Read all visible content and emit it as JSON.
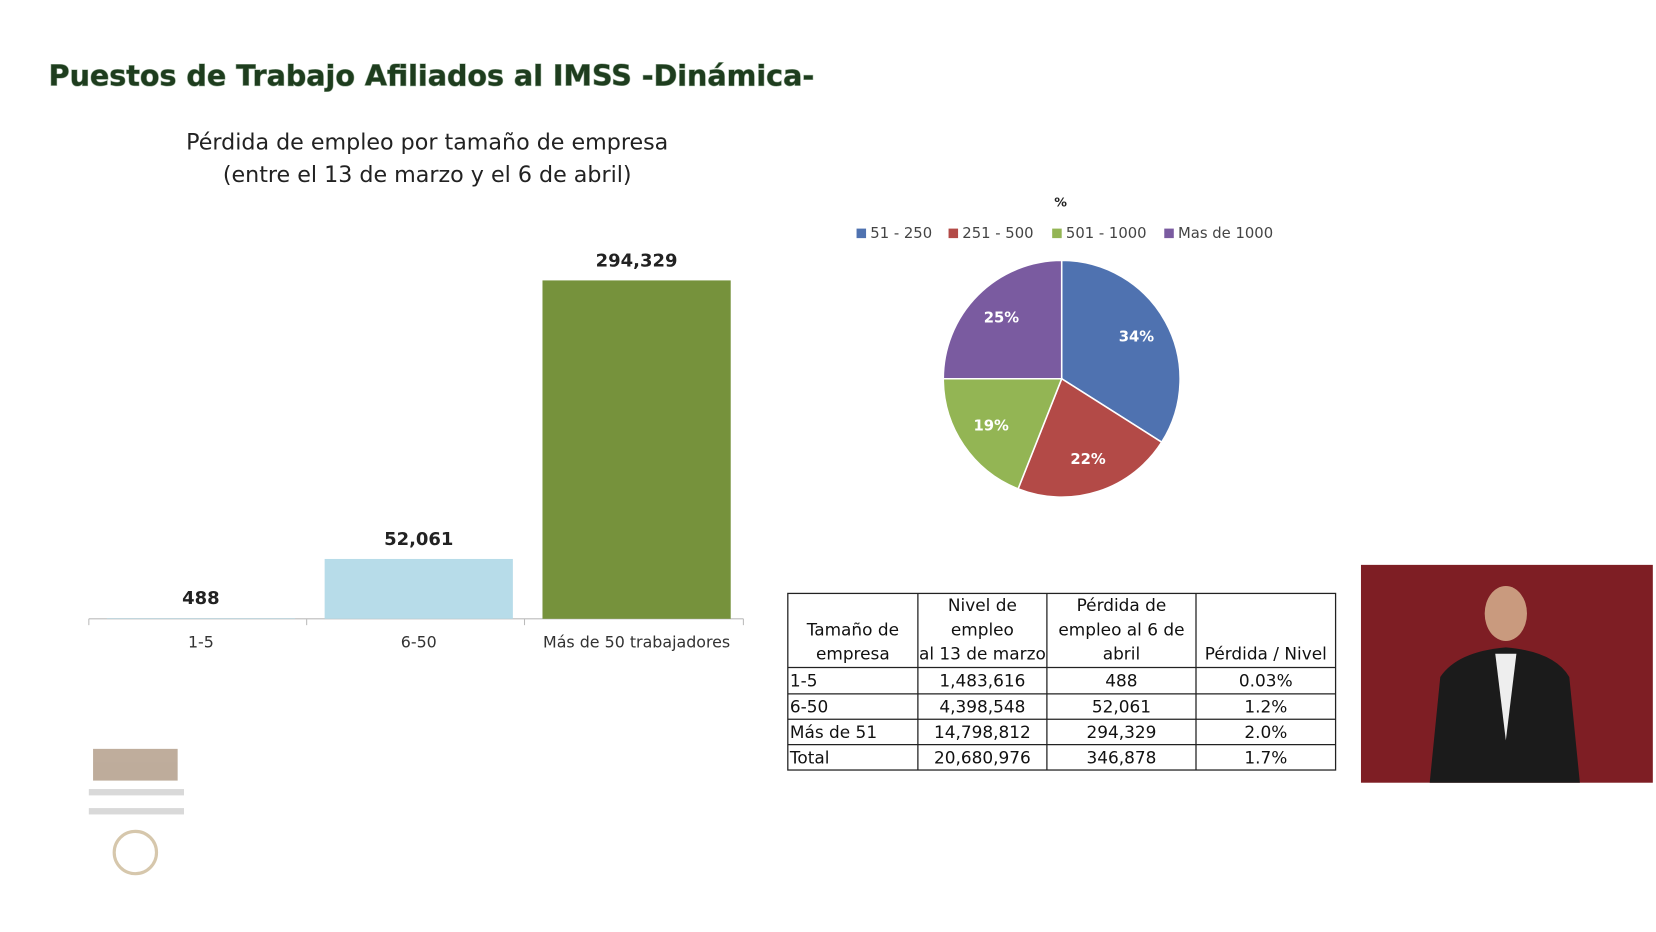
{
  "title": "Puestos de Trabajo Afiliados al IMSS -Dinámica-",
  "chart_data": [
    {
      "type": "bar",
      "title": "Pérdida de empleo por tamaño de empresa",
      "subtitle": "(entre el 13 de marzo y el 6 de abril)",
      "categories": [
        "1-5",
        "6-50",
        "Más de 50 trabajadores"
      ],
      "values": [
        488,
        52061,
        294329
      ],
      "value_labels": [
        "488",
        "52,061",
        "294,329"
      ],
      "colors": [
        "#b7dce9",
        "#b7dce9",
        "#76923c"
      ]
    },
    {
      "type": "pie",
      "title": "%",
      "categories": [
        "51 - 250",
        "251 - 500",
        "501 - 1000",
        "Mas de 1000"
      ],
      "values": [
        34,
        22,
        19,
        25
      ],
      "value_labels": [
        "34%",
        "22%",
        "19%",
        "25%"
      ],
      "colors": [
        "#4f72b0",
        "#b34a47",
        "#93b554",
        "#7a5ba0"
      ]
    }
  ],
  "table": {
    "header": [
      [
        "Tamaño de",
        "empresa"
      ],
      [
        "Nivel de",
        "empleo",
        "al 13 de marzo"
      ],
      [
        "Pérdida de",
        "empleo al 6 de",
        "abril"
      ],
      [
        "Pérdida / Nivel"
      ]
    ],
    "rows": [
      [
        "1-5",
        "1,483,616",
        "488",
        "0.03%"
      ],
      [
        "6-50",
        "4,398,548",
        "52,061",
        "1.2%"
      ],
      [
        "Más de 51",
        "14,798,812",
        "294,329",
        "2.0%"
      ],
      [
        "Total",
        "20,680,976",
        "346,878",
        "1.7%"
      ]
    ]
  }
}
